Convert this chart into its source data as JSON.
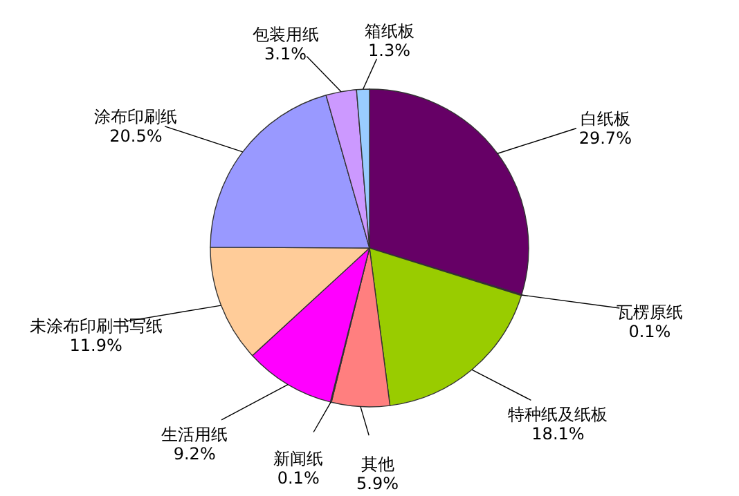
{
  "chart_data": {
    "type": "pie",
    "categories": [
      "白纸板",
      "瓦楞原纸",
      "特种纸及纸板",
      "其他",
      "新闻纸",
      "生活用纸",
      "未涂布印刷书写纸",
      "涂布印刷纸",
      "包装用纸",
      "箱纸板"
    ],
    "values": [
      29.7,
      0.1,
      18.1,
      5.9,
      0.1,
      9.2,
      11.9,
      20.5,
      3.1,
      1.3
    ],
    "value_labels": [
      "29.7%",
      "0.1%",
      "18.1%",
      "5.9%",
      "0.1%",
      "9.2%",
      "11.9%",
      "20.5%",
      "3.1%",
      "1.3%"
    ],
    "colors": [
      "#660066",
      "#336699",
      "#99cc00",
      "#ff7f7f",
      "#ffff99",
      "#ff00ff",
      "#ffcc99",
      "#9999ff",
      "#cc99ff",
      "#99ccff"
    ],
    "legend": false
  }
}
